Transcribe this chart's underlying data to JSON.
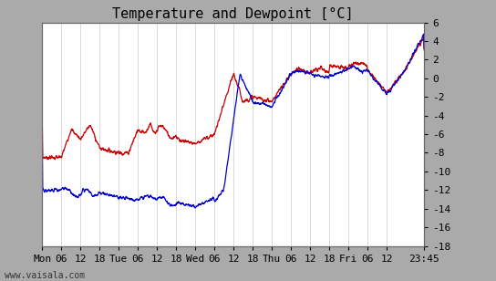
{
  "title": "Temperature and Dewpoint [°C]",
  "ylabel_right_ticks": [
    6,
    4,
    2,
    0,
    -2,
    -4,
    -6,
    -8,
    -10,
    -12,
    -14,
    -16,
    -18
  ],
  "ylim": [
    -18,
    6
  ],
  "x_tick_positions": [
    0,
    6,
    12,
    18,
    24,
    30,
    36,
    42,
    48,
    54,
    60,
    66,
    72,
    78,
    84,
    90,
    96,
    102,
    108,
    119.75
  ],
  "x_tick_labels": [
    "Mon",
    "06",
    "12",
    "18",
    "Tue",
    "06",
    "12",
    "18",
    "Wed",
    "06",
    "12",
    "18",
    "Thu",
    "06",
    "12",
    "18",
    "Fri",
    "06",
    "12",
    "23:45"
  ],
  "xlim": [
    0,
    119.75
  ],
  "watermark": "www.vaisala.com",
  "temp_color": "#cc0000",
  "dew_color": "#0000cc",
  "bg_color": "#ffffff",
  "outer_bg": "#aaaaaa",
  "grid_color": "#cccccc",
  "title_fontsize": 11,
  "tick_fontsize": 8
}
